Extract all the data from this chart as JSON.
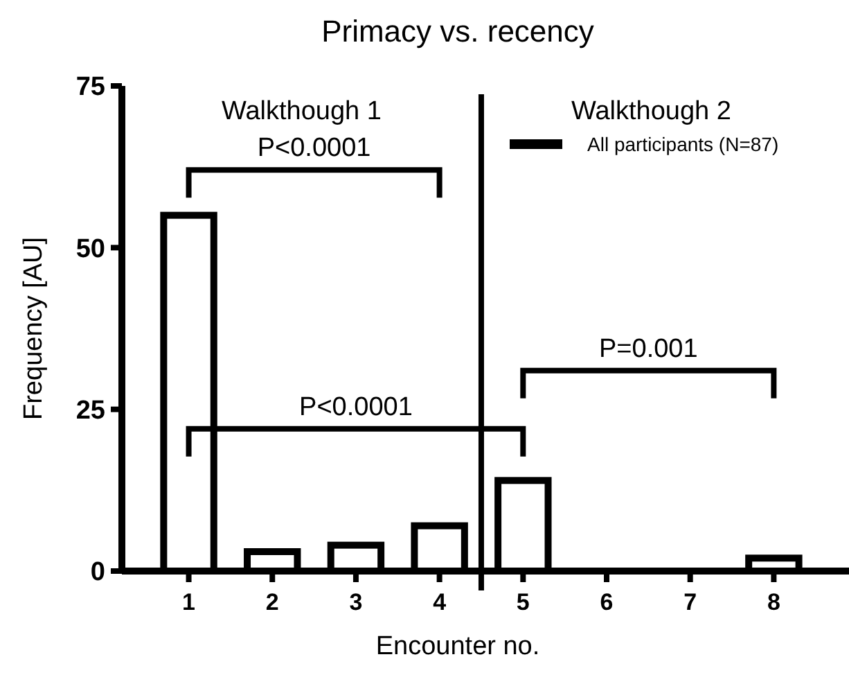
{
  "chart_data": {
    "type": "bar",
    "title": "Primacy vs. recency",
    "xlabel": "Encounter no.",
    "ylabel": "Frequency [AU]",
    "x": [
      1,
      2,
      3,
      4,
      5,
      6,
      7,
      8
    ],
    "series": [
      {
        "name": "All participants (N=87)",
        "color": "#000000",
        "values": [
          55,
          3,
          4,
          7,
          14,
          0,
          0,
          2
        ]
      }
    ],
    "xlim": [
      0.2,
      8.9
    ],
    "xticks": [
      1,
      2,
      3,
      4,
      5,
      6,
      7,
      8
    ],
    "ylim": [
      0,
      75
    ],
    "yticks": [
      0,
      25,
      50,
      75
    ],
    "ref_lines": [
      {
        "axis": "x",
        "value": 4.5,
        "color": "#000000"
      }
    ],
    "annotations": [
      "Walkthough 1",
      "Walkthough 2",
      "P<0.0001",
      "P<0.0001",
      "P=0.001"
    ],
    "legend": "top right",
    "grid": false
  }
}
